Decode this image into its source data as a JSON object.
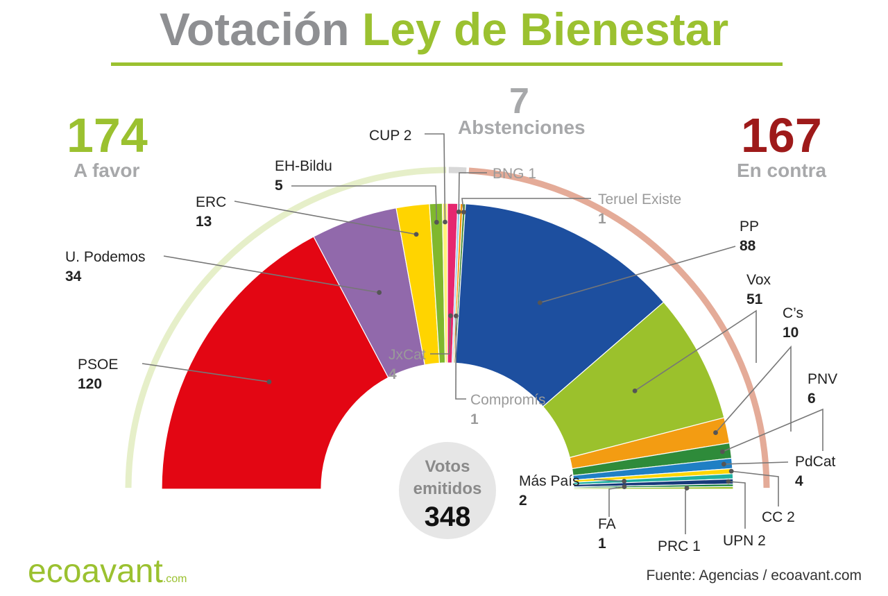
{
  "title": {
    "part1": "Votación",
    "part2": "Ley de Bienestar"
  },
  "summary": {
    "favor": {
      "value": "174",
      "label": "A favor",
      "color": "#9bc130"
    },
    "abst": {
      "value": "7",
      "label": "Abstenciones",
      "color": "#a7a8aa"
    },
    "contra": {
      "value": "167",
      "label": "En contra",
      "color": "#9e1a1a"
    }
  },
  "center": {
    "label1": "Votos",
    "label2": "emitidos",
    "total": "348"
  },
  "brand": {
    "name": "ecoavant",
    "suffix": ".com"
  },
  "source": "Fuente: Agencias / ecoavant.com",
  "chart_data": {
    "type": "pie",
    "subtype": "parliament-half-donut",
    "total": 348,
    "series": [
      {
        "name": "PSOE",
        "value": 120,
        "vote": "A favor",
        "color": "#e30613"
      },
      {
        "name": "U. Podemos",
        "value": 34,
        "vote": "A favor",
        "color": "#9169ab"
      },
      {
        "name": "ERC",
        "value": 13,
        "vote": "A favor",
        "color": "#ffd400"
      },
      {
        "name": "EH-Bildu",
        "value": 5,
        "vote": "A favor",
        "color": "#80b82d"
      },
      {
        "name": "CUP",
        "value": 2,
        "vote": "A favor",
        "color": "#fff27a"
      },
      {
        "name": "JxCat",
        "value": 4,
        "vote": "Abstenciones",
        "color": "#e5276f"
      },
      {
        "name": "BNG",
        "value": 1,
        "vote": "Abstenciones",
        "color": "#8fc6e8"
      },
      {
        "name": "Compromís",
        "value": 1,
        "vote": "Abstenciones",
        "color": "#f39200"
      },
      {
        "name": "Teruel Existe",
        "value": 1,
        "vote": "Abstenciones",
        "color": "#4a8d3a"
      },
      {
        "name": "PP",
        "value": 88,
        "vote": "En contra",
        "color": "#1d4f9f"
      },
      {
        "name": "Vox",
        "value": 51,
        "vote": "En contra",
        "color": "#9bc12c"
      },
      {
        "name": "C's",
        "value": 10,
        "vote": "En contra",
        "color": "#f39c12"
      },
      {
        "name": "PNV",
        "value": 6,
        "vote": "En contra",
        "color": "#2e8b3a"
      },
      {
        "name": "PdCat",
        "value": 4,
        "vote": "En contra",
        "color": "#1f7fc4"
      },
      {
        "name": "CC",
        "value": 2,
        "vote": "En contra",
        "color": "#ffd500"
      },
      {
        "name": "Más País",
        "value": 2,
        "vote": "En contra",
        "color": "#1fb0a0"
      },
      {
        "name": "UPN",
        "value": 2,
        "vote": "En contra",
        "color": "#173a7a"
      },
      {
        "name": "FA",
        "value": 1,
        "vote": "En contra",
        "color": "#0f7d3a"
      },
      {
        "name": "PRC",
        "value": 1,
        "vote": "En contra",
        "color": "#9bc12c"
      }
    ],
    "labels": [
      {
        "party": "PSOE",
        "name": "PSOE",
        "value": "120",
        "color": "#222222"
      },
      {
        "party": "U. Podemos",
        "name": "U. Podemos",
        "value": "34",
        "color": "#222222"
      },
      {
        "party": "ERC",
        "name": "ERC",
        "value": "13",
        "color": "#222222"
      },
      {
        "party": "EH-Bildu",
        "name": "EH-Bildu",
        "value": "5",
        "color": "#222222"
      },
      {
        "party": "CUP",
        "name": "CUP 2",
        "value": "",
        "color": "#222222"
      },
      {
        "party": "JxCat",
        "name": "JxCat",
        "value": "4",
        "color": "#9a9a9a"
      },
      {
        "party": "Compromís",
        "name": "Compromís",
        "value": "1",
        "color": "#9a9a9a"
      },
      {
        "party": "BNG",
        "name": "BNG 1",
        "value": "",
        "color": "#9a9a9a"
      },
      {
        "party": "Teruel Existe",
        "name": "Teruel Existe",
        "value": "1",
        "color": "#9a9a9a"
      },
      {
        "party": "PP",
        "name": "PP",
        "value": "88",
        "color": "#222222"
      },
      {
        "party": "Vox",
        "name": "Vox",
        "value": "51",
        "color": "#222222"
      },
      {
        "party": "C's",
        "name": "C’s",
        "value": "10",
        "color": "#222222"
      },
      {
        "party": "PNV",
        "name": "PNV",
        "value": "6",
        "color": "#222222"
      },
      {
        "party": "PdCat",
        "name": "PdCat",
        "value": "4",
        "color": "#222222"
      },
      {
        "party": "Más País",
        "name": "Más País",
        "value": "2",
        "color": "#222222"
      },
      {
        "party": "FA",
        "name": "FA",
        "value": "1",
        "color": "#222222"
      },
      {
        "party": "PRC",
        "name": "PRC 1",
        "value": "",
        "color": "#222222"
      },
      {
        "party": "UPN",
        "name": "UPN 2",
        "value": "",
        "color": "#222222"
      },
      {
        "party": "CC",
        "name": "CC 2",
        "value": "",
        "color": "#222222"
      }
    ]
  }
}
